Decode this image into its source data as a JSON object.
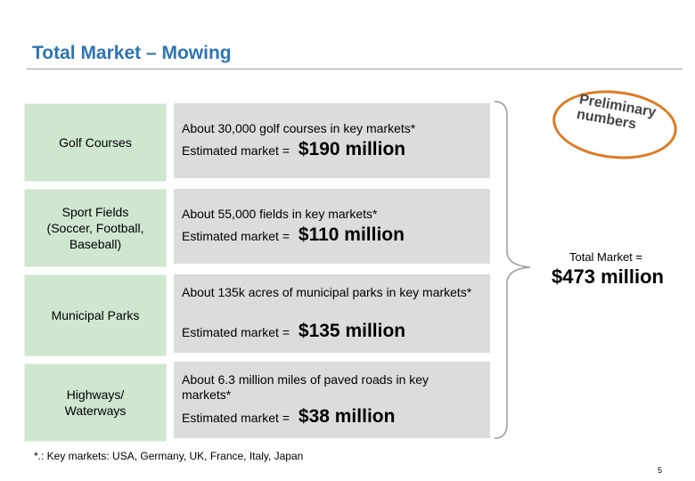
{
  "title": "Total Market – Mowing",
  "rows": [
    {
      "category": "Golf Courses",
      "description": "About 30,000 golf courses in key markets*",
      "estimate_label": "Estimated market =",
      "estimate_value": "$190 million"
    },
    {
      "category": "Sport Fields\n(Soccer, Football,\nBaseball)",
      "description": "About 55,000 fields in key markets*",
      "estimate_label": "Estimated market =",
      "estimate_value": "$110 million"
    },
    {
      "category": "Municipal Parks",
      "description": "About 135k acres of municipal parks in key markets*",
      "estimate_label": "Estimated market =",
      "estimate_value": "$135 million"
    },
    {
      "category": "Highways/\nWaterways",
      "description": "About 6.3 million  miles of paved roads in key markets*",
      "estimate_label": "Estimated market =",
      "estimate_value": "$38 million"
    }
  ],
  "stamp": "Preliminary\nnumbers",
  "total": {
    "label": "Total Market =",
    "value": "$473 million"
  },
  "footnote": "*.: Key markets: USA, Germany, UK, France, Italy, Japan",
  "page_number": "5",
  "colors": {
    "title": "#2e74b5",
    "category_fill": "#cfe6cf",
    "detail_fill": "#dcdcdc",
    "stamp_border": "#e07a22"
  }
}
